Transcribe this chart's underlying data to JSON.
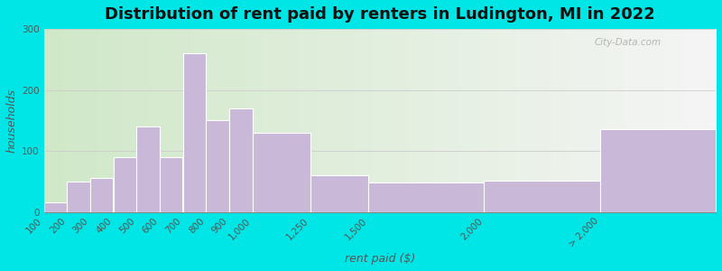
{
  "title": "Distribution of rent paid by renters in Ludington, MI in 2022",
  "xlabel": "rent paid ($)",
  "ylabel": "households",
  "bin_edges": [
    100,
    200,
    300,
    400,
    500,
    600,
    700,
    800,
    900,
    1000,
    1250,
    1500,
    2000,
    2500
  ],
  "bin_labels": [
    "100",
    "200",
    "300",
    "400",
    "500",
    "600",
    "700",
    "800",
    "900",
    "1,000",
    "1,250",
    "1,500",
    "2,000",
    "> 2,000"
  ],
  "values": [
    15,
    50,
    55,
    90,
    140,
    90,
    260,
    150,
    170,
    130,
    60,
    48,
    52,
    135
  ],
  "bar_color": "#c9b8d8",
  "bar_edge_color": "#ffffff",
  "background_outer": "#00e5e5",
  "background_grad_left": "#d0e8c8",
  "background_grad_right": "#f5f5f5",
  "title_fontsize": 13,
  "axis_label_fontsize": 9,
  "tick_fontsize": 7.5,
  "ylim": [
    0,
    300
  ],
  "yticks": [
    0,
    100,
    200,
    300
  ],
  "watermark": "City-Data.com"
}
